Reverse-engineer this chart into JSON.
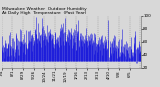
{
  "title": "Milwaukee Weather Outdoor Humidity  At Daily High  Temperature  (Past Year)",
  "background_color": "#d8d8d8",
  "plot_background": "#d8d8d8",
  "ylim": [
    20,
    100
  ],
  "xlim": [
    0,
    365
  ],
  "num_points": 365,
  "blue_color": "#0000dd",
  "red_color": "#dd0000",
  "title_fontsize": 3.2,
  "tick_fontsize": 3.0,
  "grid_color": "#888888",
  "seed": 7
}
